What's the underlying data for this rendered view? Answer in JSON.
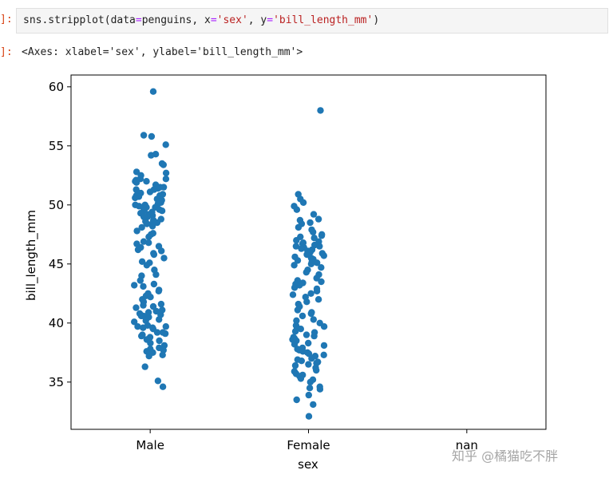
{
  "notebook": {
    "input_prompt": "]:",
    "output_prompt": "]:",
    "code": {
      "func": "sns.stripplot",
      "args_open": "(data",
      "eq1": "=",
      "data_var": "penguins, x",
      "eq2": "=",
      "x_str": "'sex'",
      "sep": ", y",
      "eq3": "=",
      "y_str": "'bill_length_mm'",
      "close": ")"
    },
    "output_text": "<Axes: xlabel='sex', ylabel='bill_length_mm'>"
  },
  "watermark": "知乎 @橘猫吃不胖",
  "chart_data": {
    "type": "scatter",
    "xlabel": "sex",
    "ylabel": "bill_length_mm",
    "categories": [
      "Male",
      "Female",
      "nan"
    ],
    "ylim": [
      31,
      61
    ],
    "yticks": [
      35,
      40,
      45,
      50,
      55,
      60
    ],
    "grid": false,
    "point_color": "#1f77b4",
    "series": [
      {
        "category": "Male",
        "values": [
          59.6,
          55.9,
          55.8,
          55.1,
          54.3,
          54.2,
          53.5,
          53.4,
          52.8,
          52.7,
          52.5,
          52.2,
          52.2,
          52.1,
          52.0,
          52.0,
          51.9,
          51.7,
          51.5,
          51.5,
          51.4,
          51.3,
          51.3,
          51.1,
          51.0,
          50.9,
          50.8,
          50.8,
          50.7,
          50.6,
          50.5,
          50.5,
          50.4,
          50.3,
          50.2,
          50.1,
          50.0,
          50.0,
          49.9,
          49.8,
          49.8,
          49.7,
          49.6,
          49.5,
          49.5,
          49.4,
          49.3,
          49.2,
          49.1,
          49.0,
          49.0,
          48.8,
          48.7,
          48.6,
          48.5,
          48.5,
          48.4,
          48.2,
          48.1,
          47.8,
          47.6,
          47.5,
          47.3,
          46.9,
          46.8,
          46.7,
          46.5,
          46.4,
          46.2,
          46.1,
          45.9,
          45.8,
          45.5,
          45.2,
          45.1,
          44.9,
          44.5,
          44.1,
          44.0,
          43.6,
          43.3,
          43.2,
          43.1,
          42.8,
          42.7,
          42.5,
          42.3,
          42.2,
          42.0,
          41.8,
          41.6,
          41.5,
          41.4,
          41.3,
          41.1,
          41.0,
          40.9,
          40.8,
          40.7,
          40.6,
          40.6,
          40.5,
          40.3,
          40.2,
          40.1,
          39.8,
          39.7,
          39.7,
          39.6,
          39.6,
          39.5,
          39.2,
          39.2,
          39.1,
          39.0,
          38.9,
          38.8,
          38.6,
          38.5,
          38.3,
          38.1,
          37.9,
          37.8,
          37.7,
          37.6,
          37.5,
          37.3,
          37.2,
          36.3,
          35.1,
          34.6
        ]
      },
      {
        "category": "Female",
        "values": [
          58.0,
          50.9,
          50.5,
          50.2,
          49.9,
          49.6,
          49.2,
          48.8,
          48.7,
          48.5,
          48.4,
          48.1,
          47.9,
          47.7,
          47.5,
          47.4,
          47.3,
          47.2,
          47.0,
          46.9,
          46.8,
          46.7,
          46.6,
          46.5,
          46.5,
          46.4,
          46.3,
          46.2,
          46.1,
          46.0,
          45.9,
          45.8,
          45.7,
          45.6,
          45.5,
          45.4,
          45.3,
          45.2,
          45.1,
          45.0,
          44.9,
          44.7,
          44.5,
          44.3,
          44.1,
          43.8,
          43.6,
          43.5,
          43.4,
          43.3,
          43.2,
          43.0,
          42.9,
          42.7,
          42.5,
          42.4,
          42.2,
          42.0,
          41.8,
          41.6,
          41.4,
          41.1,
          40.9,
          40.8,
          40.6,
          40.3,
          40.2,
          40.0,
          39.8,
          39.7,
          39.6,
          39.5,
          39.3,
          39.2,
          39.0,
          38.9,
          38.8,
          38.7,
          38.6,
          38.5,
          38.3,
          38.2,
          38.1,
          37.9,
          37.8,
          37.7,
          37.6,
          37.5,
          37.4,
          37.3,
          37.2,
          37.0,
          36.9,
          36.8,
          36.7,
          36.6,
          36.5,
          36.4,
          36.2,
          36.0,
          35.9,
          35.7,
          35.6,
          35.5,
          35.3,
          35.2,
          35.0,
          34.6,
          34.5,
          34.4,
          33.9,
          33.5,
          33.1,
          32.1
        ]
      }
    ]
  }
}
